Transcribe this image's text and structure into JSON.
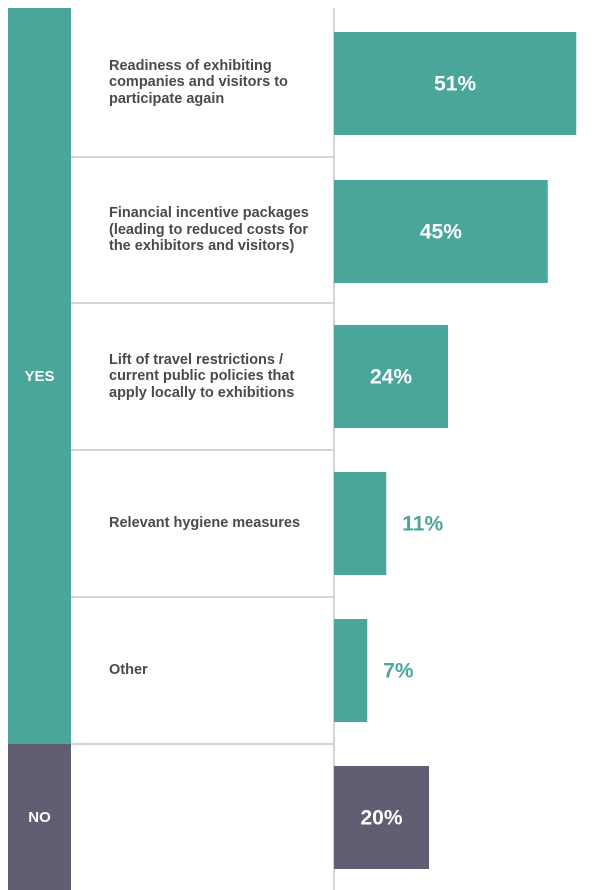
{
  "colors": {
    "yes": "#4aa59a",
    "no": "#625d72",
    "label_inside": "#ffffff",
    "label_outside_yes": "#4aa59a"
  },
  "groups": {
    "yes": "YES",
    "no": "NO"
  },
  "chart_data": {
    "type": "bar",
    "orientation": "horizontal",
    "categories": [
      "Readiness of exhibiting companies and visitors to participate again",
      "Financial incentive packages (leading to reduced costs for the exhibitors and visitors)",
      "Lift of travel restrictions / current public policies that apply locally to exhibitions",
      "Relevant hygiene measures",
      "Other",
      ""
    ],
    "groups": [
      "YES",
      "YES",
      "YES",
      "YES",
      "YES",
      "NO"
    ],
    "values": [
      51,
      45,
      24,
      11,
      7,
      20
    ],
    "data_labels": [
      "51%",
      "45%",
      "24%",
      "11%",
      "7%",
      "20%"
    ],
    "xlim": [
      0,
      55
    ],
    "unit": "%"
  }
}
